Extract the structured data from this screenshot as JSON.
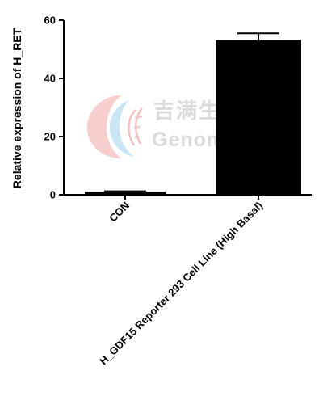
{
  "watermark": {
    "cn": "吉满生物科技",
    "en": "Genomeditech"
  },
  "chart_data": {
    "type": "bar",
    "categories": [
      "CON",
      "H_GDF15 Reporter 293 Cell Line (High Basal)"
    ],
    "values": [
      1,
      53.2
    ],
    "errors": [
      0.2,
      2.3
    ],
    "xlabel": "",
    "ylabel": "Relative expression of H_RET",
    "ylim": [
      0,
      60
    ],
    "yticks": [
      0,
      20,
      40,
      60
    ],
    "bar_color": "#000000",
    "grid": false
  }
}
